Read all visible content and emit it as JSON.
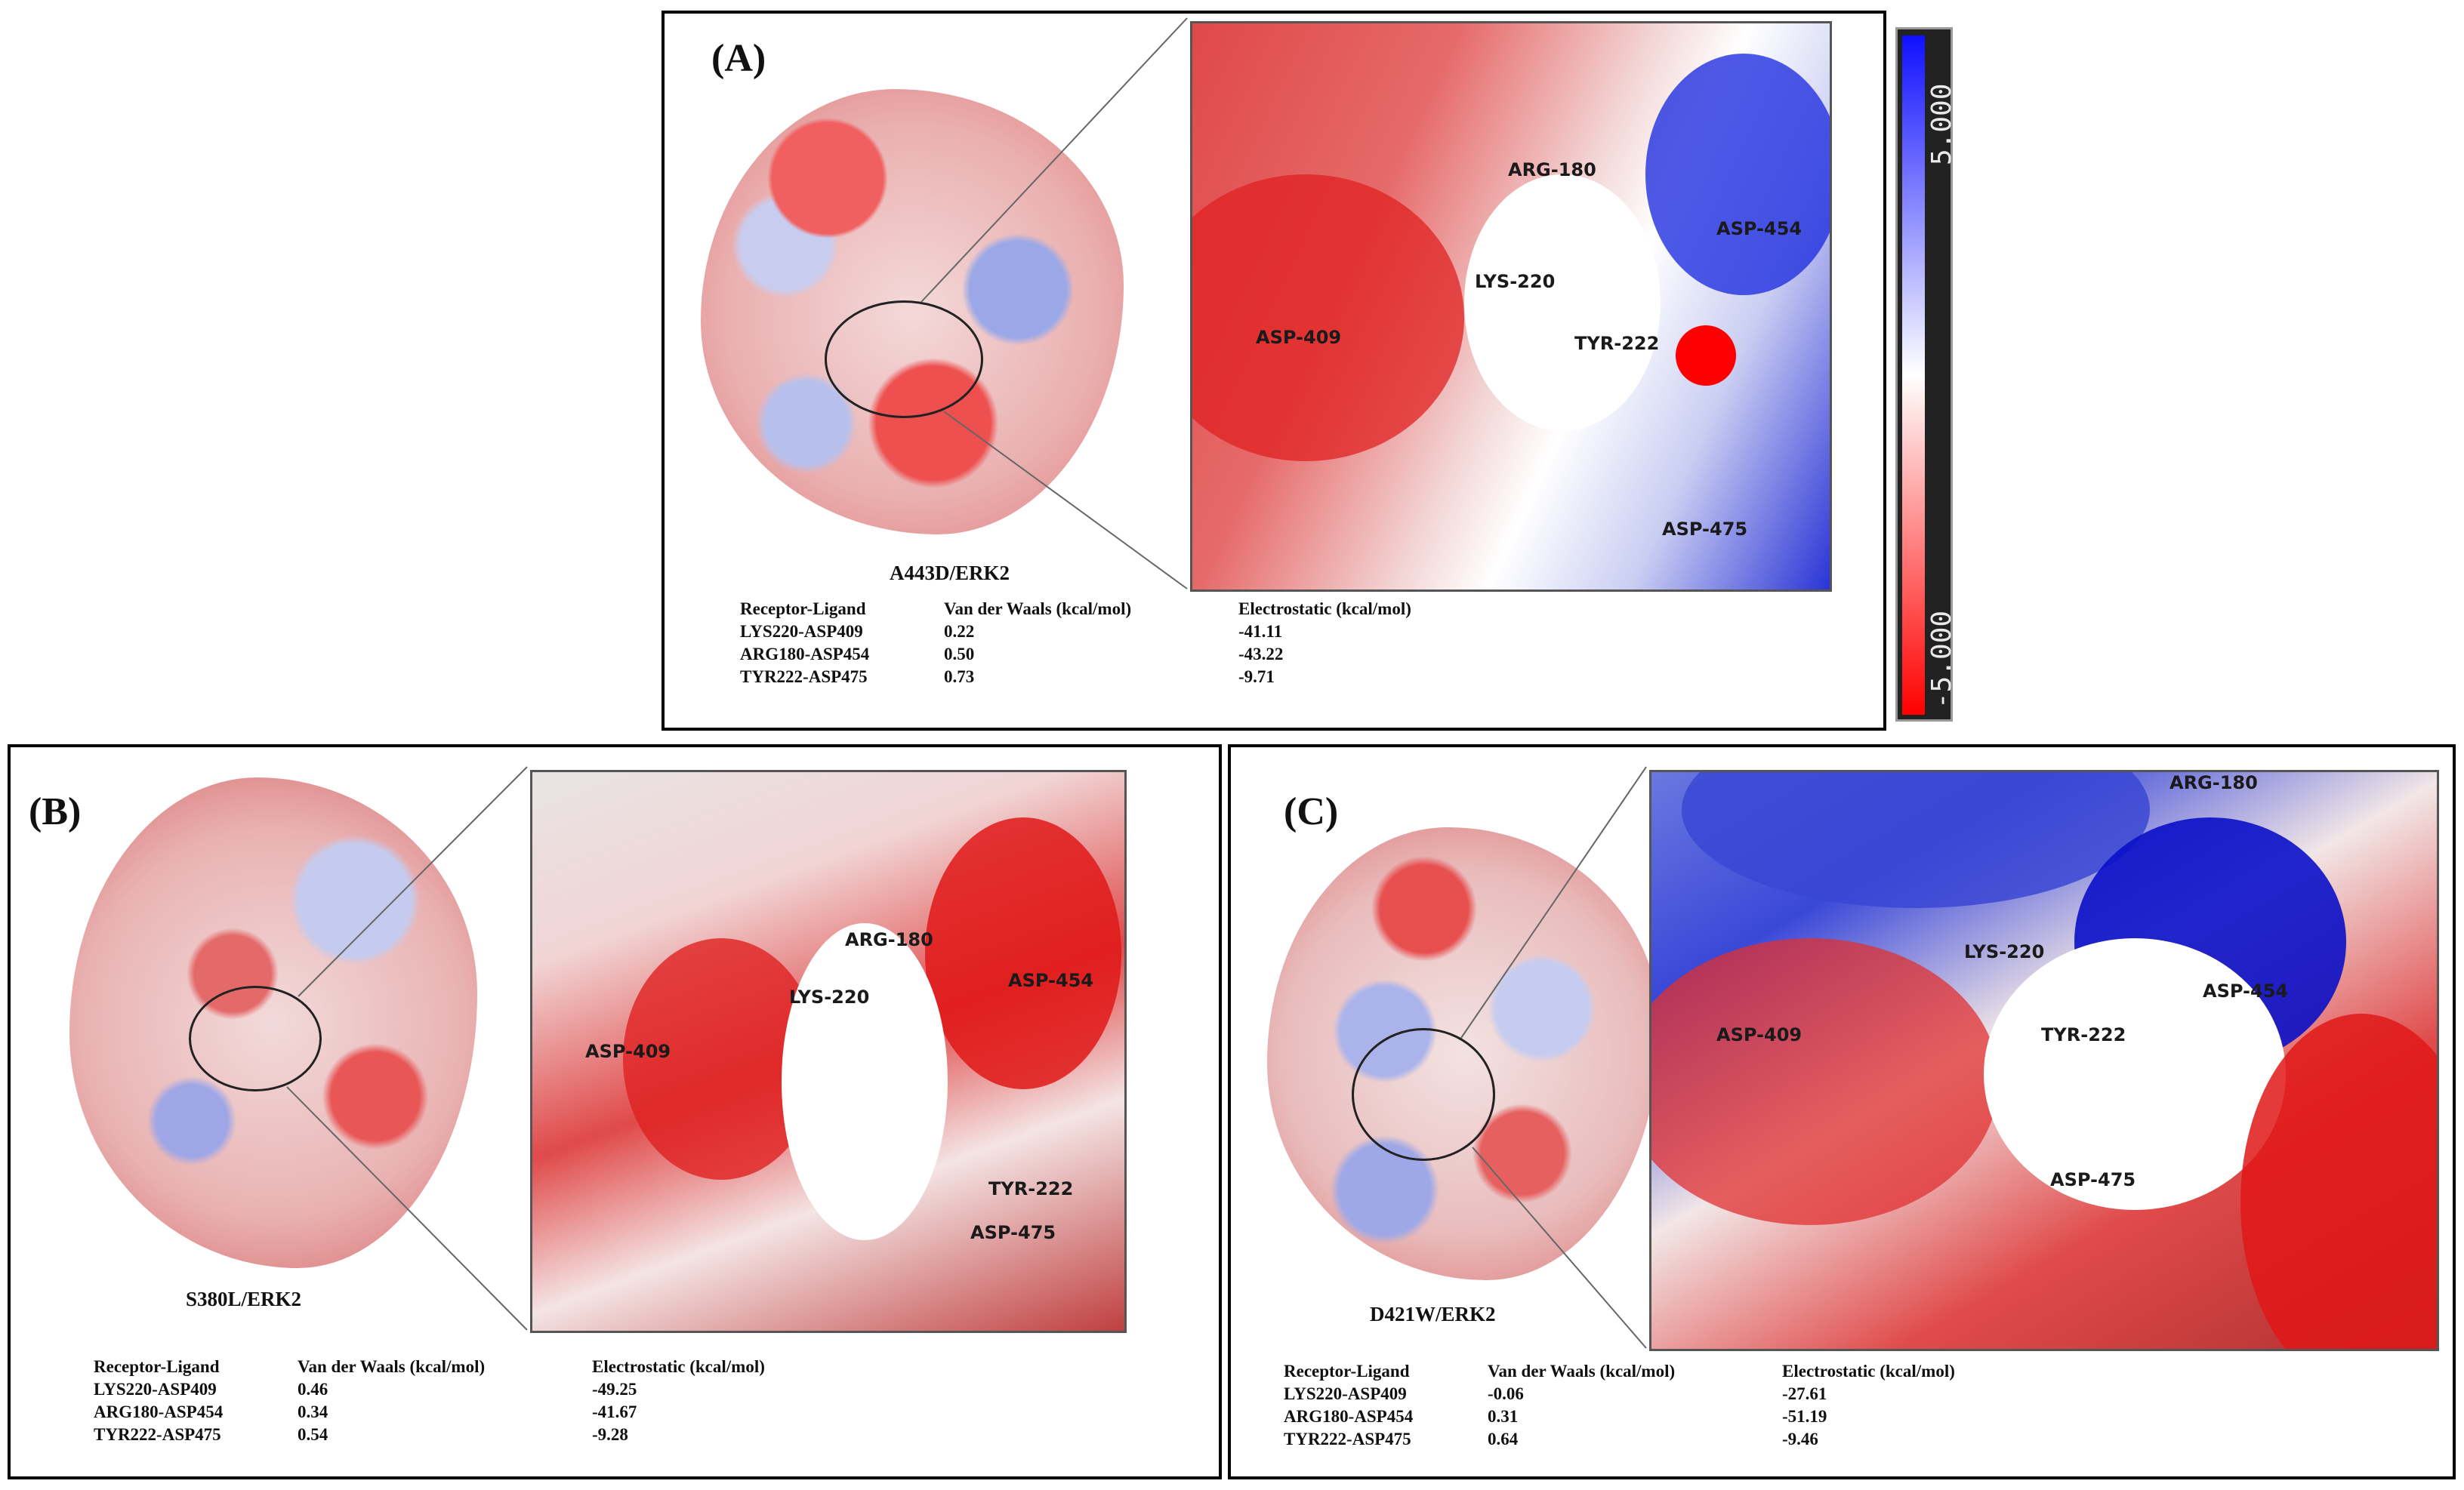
{
  "colorbar": {
    "max_label": "5.000",
    "min_label": "-5.000",
    "colors": {
      "positive": "#1010ff",
      "neutral": "#ffffff",
      "negative": "#ff0000"
    }
  },
  "table_headers": {
    "pair": "Receptor-Ligand",
    "vdw": "Van der Waals (kcal/mol)",
    "elec": "Electrostatic (kcal/mol)"
  },
  "panels": [
    {
      "letter": "(A)",
      "caption": "A443D/ERK2",
      "residues": [
        "ARG-180",
        "LYS-220",
        "ASP-454",
        "ASP-409",
        "TYR-222",
        "ASP-475"
      ],
      "rows": [
        {
          "pair": "LYS220-ASP409",
          "vdw": "0.22",
          "elec": "-41.11"
        },
        {
          "pair": "ARG180-ASP454",
          "vdw": "0.50",
          "elec": "-43.22"
        },
        {
          "pair": "TYR222-ASP475",
          "vdw": "0.73",
          "elec": "-9.71"
        }
      ]
    },
    {
      "letter": "(B)",
      "caption": "S380L/ERK2",
      "residues": [
        "ARG-180",
        "LYS-220",
        "ASP-454",
        "ASP-409",
        "TYR-222",
        "ASP-475"
      ],
      "rows": [
        {
          "pair": "LYS220-ASP409",
          "vdw": "0.46",
          "elec": "-49.25"
        },
        {
          "pair": "ARG180-ASP454",
          "vdw": "0.34",
          "elec": "-41.67"
        },
        {
          "pair": "TYR222-ASP475",
          "vdw": "0.54",
          "elec": "-9.28"
        }
      ]
    },
    {
      "letter": "(C)",
      "caption": "D421W/ERK2",
      "residues": [
        "ARG-180",
        "LYS-220",
        "ASP-454",
        "ASP-409",
        "TYR-222",
        "ASP-475"
      ],
      "rows": [
        {
          "pair": "LYS220-ASP409",
          "vdw": "-0.06",
          "elec": "-27.61"
        },
        {
          "pair": "ARG180-ASP454",
          "vdw": "0.31",
          "elec": "-51.19"
        },
        {
          "pair": "TYR222-ASP475",
          "vdw": "0.64",
          "elec": "-9.46"
        }
      ]
    }
  ]
}
